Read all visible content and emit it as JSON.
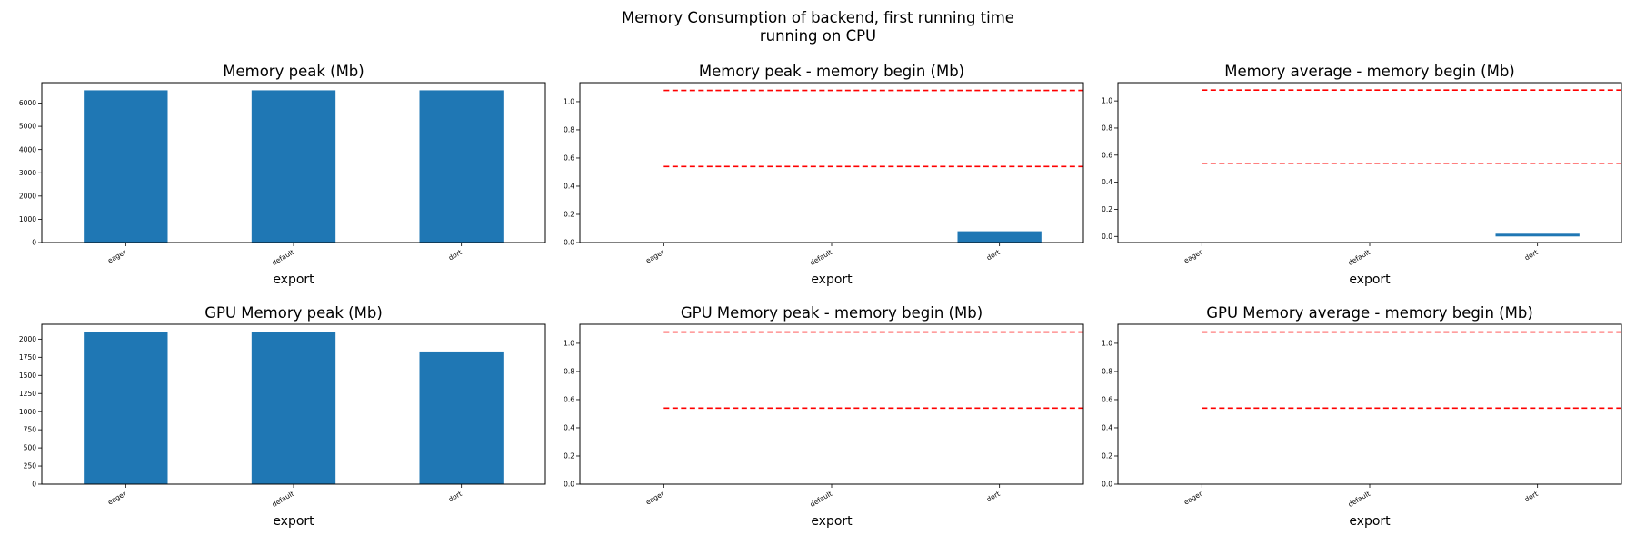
{
  "figure": {
    "title_line1": "Memory Consumption of backend, first running time",
    "title_line2": "running on CPU",
    "bar_color": "#1f77b4",
    "ref_line_color": "#ff0000"
  },
  "chart_data": [
    {
      "type": "bar",
      "title": "Memory peak (Mb)",
      "xlabel": "export",
      "ylabel": "",
      "categories": [
        "eager",
        "default",
        "dort"
      ],
      "values": [
        6550,
        6550,
        6550
      ],
      "ylim": [
        0,
        6880
      ],
      "yticks": [
        0,
        1000,
        2000,
        3000,
        4000,
        5000,
        6000
      ],
      "reference_lines": [],
      "grid": false
    },
    {
      "type": "bar",
      "title": "Memory peak - memory begin (Mb)",
      "xlabel": "export",
      "ylabel": "",
      "categories": [
        "eager",
        "default",
        "dort"
      ],
      "values": [
        0,
        0,
        0.08
      ],
      "ylim": [
        0,
        1.135
      ],
      "yticks": [
        0.0,
        0.2,
        0.4,
        0.6,
        0.8,
        1.0
      ],
      "reference_lines": [
        0.54,
        1.08
      ],
      "grid": false
    },
    {
      "type": "bar",
      "title": "Memory average - memory begin (Mb)",
      "xlabel": "export",
      "ylabel": "",
      "categories": [
        "eager",
        "default",
        "dort"
      ],
      "values": [
        0,
        0,
        0.02
      ],
      "ylim": [
        -0.045,
        1.135
      ],
      "yticks": [
        0.0,
        0.2,
        0.4,
        0.6,
        0.8,
        1.0
      ],
      "reference_lines": [
        0.54,
        1.08
      ],
      "grid": false
    },
    {
      "type": "bar",
      "title": "GPU Memory peak (Mb)",
      "xlabel": "export",
      "ylabel": "",
      "categories": [
        "eager",
        "default",
        "dort"
      ],
      "values": [
        2100,
        2100,
        1830
      ],
      "ylim": [
        0,
        2205
      ],
      "yticks": [
        0,
        250,
        500,
        750,
        1000,
        1250,
        1500,
        1750,
        2000
      ],
      "reference_lines": [],
      "grid": false
    },
    {
      "type": "bar",
      "title": "GPU Memory peak - memory begin (Mb)",
      "xlabel": "export",
      "ylabel": "",
      "categories": [
        "eager",
        "default",
        "dort"
      ],
      "values": [
        0,
        0,
        0
      ],
      "ylim": [
        0,
        1.135
      ],
      "yticks": [
        0.0,
        0.2,
        0.4,
        0.6,
        0.8,
        1.0
      ],
      "reference_lines": [
        0.54,
        1.08
      ],
      "grid": false
    },
    {
      "type": "bar",
      "title": "GPU Memory average - memory begin (Mb)",
      "xlabel": "export",
      "ylabel": "",
      "categories": [
        "eager",
        "default",
        "dort"
      ],
      "values": [
        0,
        0,
        0
      ],
      "ylim": [
        0,
        1.135
      ],
      "yticks": [
        0.0,
        0.2,
        0.4,
        0.6,
        0.8,
        1.0
      ],
      "reference_lines": [
        0.54,
        1.08
      ],
      "grid": false
    }
  ]
}
